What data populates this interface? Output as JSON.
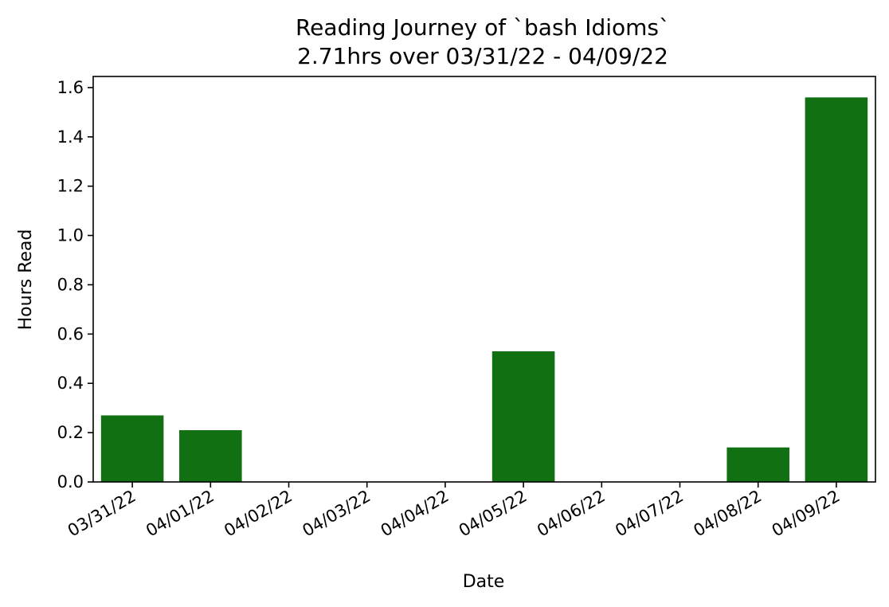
{
  "chart_data": {
    "type": "bar",
    "title": "Reading Journey of `bash Idioms`",
    "subtitle": "2.71hrs over 03/31/22 - 04/09/22",
    "xlabel": "Date",
    "ylabel": "Hours Read",
    "categories": [
      "03/31/22",
      "04/01/22",
      "04/02/22",
      "04/03/22",
      "04/04/22",
      "04/05/22",
      "04/06/22",
      "04/07/22",
      "04/08/22",
      "04/09/22"
    ],
    "values": [
      0.27,
      0.21,
      0,
      0,
      0,
      0.53,
      0,
      0,
      0.14,
      1.56
    ],
    "ylim": [
      0,
      1.645
    ],
    "yticks": [
      0.0,
      0.2,
      0.4,
      0.6,
      0.8,
      1.0,
      1.2,
      1.4,
      1.6
    ],
    "ytick_labels": [
      "0.0",
      "0.2",
      "0.4",
      "0.6",
      "0.8",
      "1.0",
      "1.2",
      "1.4",
      "1.6"
    ],
    "bar_color": "#117011",
    "grid": false,
    "legend": false
  }
}
